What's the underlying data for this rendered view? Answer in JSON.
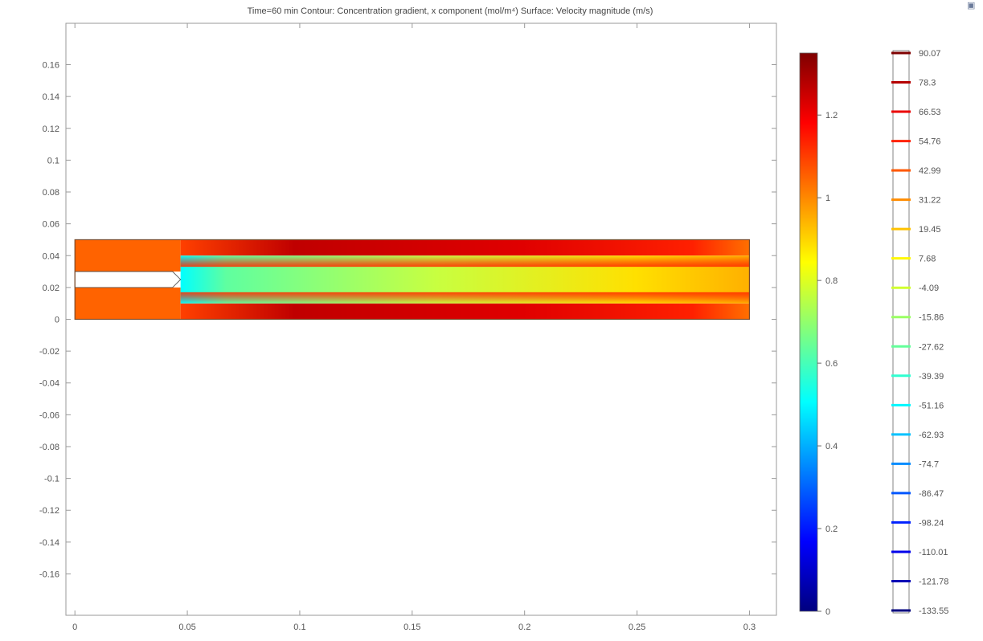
{
  "title": "Time=60 min   Contour: Concentration gradient, x component (mol/m⁴)  Surface: Velocity magnitude (m/s)",
  "corner_icon": "window-icon",
  "colors": {
    "frame": "#9a9a9a",
    "colormap": [
      "#00007f",
      "#0000ff",
      "#007fff",
      "#00ffff",
      "#7fff7f",
      "#ffff00",
      "#ff7f00",
      "#ff0000",
      "#7f0000"
    ]
  },
  "chart_data": [
    {
      "type": "heatmap",
      "title": "",
      "xlabel": "",
      "ylabel": "",
      "xlim": [
        -0.004,
        0.312
      ],
      "ylim": [
        -0.186,
        0.186
      ],
      "x_ticks": [
        0,
        0.05,
        0.1,
        0.15,
        0.2,
        0.25,
        0.3
      ],
      "x_tick_labels": [
        "0",
        "0.05",
        "0.1",
        "0.15",
        "0.2",
        "0.25",
        "0.3"
      ],
      "y_ticks": [
        0.16,
        0.14,
        0.12,
        0.1,
        0.08,
        0.06,
        0.04,
        0.02,
        0,
        -0.02,
        -0.04,
        -0.06,
        -0.08,
        -0.1,
        -0.12,
        -0.14,
        -0.16
      ],
      "y_tick_labels": [
        "0.16",
        "0.14",
        "0.12",
        "0.1",
        "0.08",
        "0.06",
        "0.04",
        "0.02",
        "0",
        "-0.02",
        "-0.04",
        "-0.06",
        "-0.08",
        "-0.1",
        "-0.12",
        "-0.14",
        "-0.16"
      ],
      "grid": false,
      "domain": {
        "x": [
          0,
          0.3
        ],
        "y": [
          0,
          0.05
        ]
      },
      "inlet_insert": {
        "x": [
          0,
          0.047
        ],
        "y": [
          0.02,
          0.03
        ]
      },
      "regions": [
        {
          "x": [
            0,
            0.047
          ],
          "y": [
            0.03,
            0.05
          ],
          "value": 1.05
        },
        {
          "x": [
            0,
            0.047
          ],
          "y": [
            0,
            0.02
          ],
          "value": 1.05
        },
        {
          "x": [
            0.047,
            0.3
          ],
          "y": [
            0.04,
            0.05
          ],
          "value": 1.3
        },
        {
          "x": [
            0.047,
            0.3
          ],
          "y": [
            0,
            0.01
          ],
          "value": 1.3
        },
        {
          "x": [
            0.047,
            0.3
          ],
          "y": [
            0.01,
            0.04
          ],
          "value": 0.6
        }
      ]
    },
    {
      "type": "colorbar",
      "label": "Surface: Velocity magnitude (m/s)",
      "range": [
        0,
        1.35
      ],
      "ticks": [
        0,
        0.2,
        0.4,
        0.6,
        0.8,
        1,
        1.2
      ],
      "tick_labels": [
        "0",
        "0.2",
        "0.4",
        "0.6",
        "0.8",
        "1",
        "1.2"
      ]
    },
    {
      "type": "legend",
      "label": "Contour: Concentration gradient, x component (mol/m⁴)",
      "levels": [
        90.07,
        78.3,
        66.53,
        54.76,
        42.99,
        31.22,
        19.45,
        7.68,
        -4.09,
        -15.86,
        -27.62,
        -39.39,
        -51.16,
        -62.93,
        -74.7,
        -86.47,
        -98.24,
        -110.01,
        -121.78,
        -133.55
      ],
      "level_labels": [
        "90.07",
        "78.3",
        "66.53",
        "54.76",
        "42.99",
        "31.22",
        "19.45",
        "7.68",
        "-4.09",
        "-15.86",
        "-27.62",
        "-39.39",
        "-51.16",
        "-62.93",
        "-74.7",
        "-86.47",
        "-98.24",
        "-110.01",
        "-121.78",
        "-133.55"
      ]
    }
  ]
}
